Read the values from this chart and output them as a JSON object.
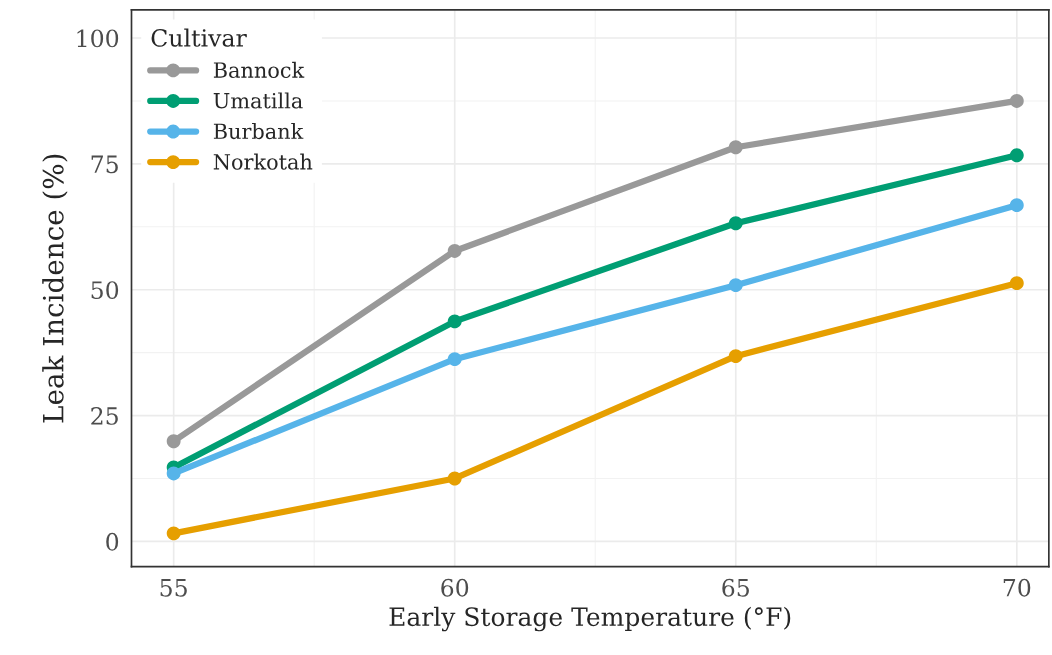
{
  "chart_data": {
    "type": "line",
    "xlabel": "Early Storage Temperature (°F)",
    "ylabel": "Leak Incidence (%)",
    "legend_title": "Cultivar",
    "x": [
      55,
      60,
      65,
      70
    ],
    "series": [
      {
        "name": "Bannock",
        "color": "#999999",
        "values": [
          19.9,
          57.7,
          78.3,
          87.5
        ]
      },
      {
        "name": "Umatilla",
        "color": "#009e73",
        "values": [
          14.7,
          43.7,
          63.2,
          76.7
        ]
      },
      {
        "name": "Burbank",
        "color": "#56b4e9",
        "values": [
          13.5,
          36.2,
          50.9,
          66.8
        ]
      },
      {
        "name": "Norkotah",
        "color": "#e69f00",
        "values": [
          1.6,
          12.5,
          36.8,
          51.3
        ]
      }
    ],
    "xlim": [
      54.25,
      70.57
    ],
    "ylim": [
      -5,
      105.6
    ],
    "xticks": [
      55,
      60,
      65,
      70
    ],
    "yticks": [
      0,
      25,
      50,
      75,
      100
    ],
    "grid": true,
    "legend": "top left",
    "marker": "circle",
    "line_style": "solid"
  }
}
